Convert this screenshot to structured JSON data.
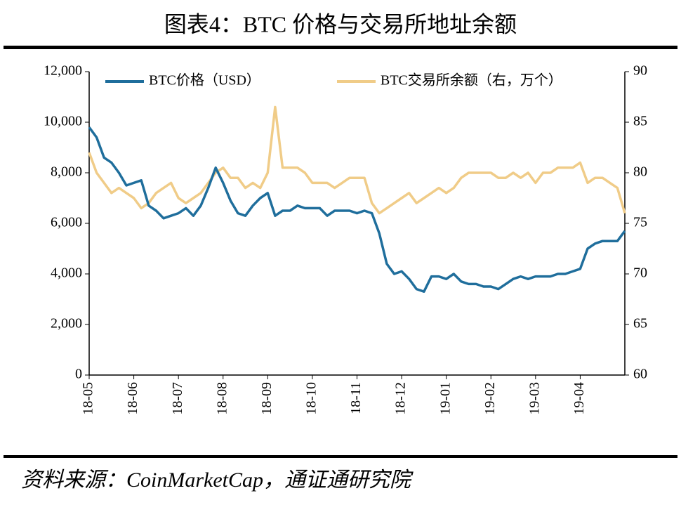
{
  "chart_data": {
    "type": "line",
    "title": "图表4：BTC 价格与交易所地址余额",
    "source": "资料来源：CoinMarketCap，通证通研究院",
    "categories": [
      "18-05",
      null,
      null,
      null,
      null,
      null,
      "18-06",
      null,
      null,
      null,
      null,
      null,
      "18-07",
      null,
      null,
      null,
      null,
      null,
      "18-08",
      null,
      null,
      null,
      null,
      null,
      "18-09",
      null,
      null,
      null,
      null,
      null,
      "18-10",
      null,
      null,
      null,
      null,
      null,
      "18-11",
      null,
      null,
      null,
      null,
      null,
      "18-12",
      null,
      null,
      null,
      null,
      null,
      "19-01",
      null,
      null,
      null,
      null,
      null,
      "19-02",
      null,
      null,
      null,
      null,
      null,
      "19-03",
      null,
      null,
      null,
      null,
      null,
      "19-04",
      null,
      null,
      null,
      null,
      null,
      null
    ],
    "series": [
      {
        "name": "BTC价格（USD）",
        "color": "#1f6e9c",
        "axis": "y",
        "values": [
          9800,
          9400,
          8600,
          8400,
          8000,
          7500,
          7600,
          7700,
          6700,
          6500,
          6200,
          6300,
          6400,
          6600,
          6300,
          6700,
          7400,
          8200,
          7600,
          6900,
          6400,
          6300,
          6700,
          7000,
          7200,
          6300,
          6500,
          6500,
          6700,
          6600,
          6600,
          6600,
          6300,
          6500,
          6500,
          6500,
          6400,
          6500,
          6400,
          5600,
          4400,
          4000,
          4100,
          3800,
          3400,
          3300,
          3900,
          3900,
          3800,
          4000,
          3700,
          3600,
          3600,
          3500,
          3500,
          3400,
          3600,
          3800,
          3900,
          3800,
          3900,
          3900,
          3900,
          4000,
          4000,
          4100,
          4200,
          5000,
          5200,
          5300,
          5300,
          5300,
          5700
        ]
      },
      {
        "name": "BTC交易所余额（右，万个）",
        "color": "#f0cc88",
        "axis": "y2",
        "values": [
          82,
          80,
          79,
          78,
          78.5,
          78,
          77.5,
          76.5,
          77,
          78,
          78.5,
          79,
          77.5,
          77,
          77.5,
          78,
          79,
          80,
          80.5,
          79.5,
          79.5,
          78.5,
          79,
          78.5,
          80,
          86.5,
          80.5,
          80.5,
          80.5,
          80,
          79,
          79,
          79,
          78.5,
          79,
          79.5,
          79.5,
          79.5,
          77,
          76,
          76.5,
          77,
          77.5,
          78,
          77,
          77.5,
          78,
          78.5,
          78,
          78.5,
          79.5,
          80,
          80,
          80,
          80,
          79.5,
          79.5,
          80,
          79.5,
          80,
          79,
          80,
          80,
          80.5,
          80.5,
          80.5,
          81,
          79,
          79.5,
          79.5,
          79,
          78.5,
          76
        ]
      }
    ],
    "ylim": [
      0,
      12000
    ],
    "yticks": [
      0,
      {
        "value": 2000,
        "label": "2,000"
      },
      {
        "value": 4000,
        "label": "4,000"
      },
      {
        "value": 6000,
        "label": "6,000"
      },
      {
        "value": 8000,
        "label": "8,000"
      },
      {
        "value": 10000,
        "label": "10,000"
      },
      {
        "value": 12000,
        "label": "12,000"
      }
    ],
    "y2lim": [
      60,
      90
    ],
    "y2ticks": [
      60,
      65,
      70,
      75,
      80,
      85,
      90
    ],
    "legend": "top"
  }
}
